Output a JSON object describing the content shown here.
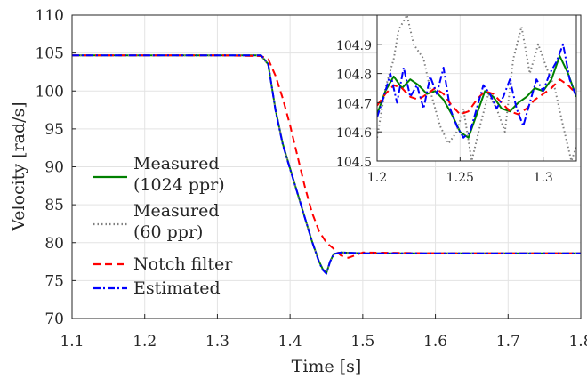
{
  "chart_data": [
    {
      "type": "line",
      "xlabel": "Time [s]",
      "ylabel": "Velocity [rad/s]",
      "xlim": [
        1.1,
        1.8
      ],
      "ylim": [
        70,
        110
      ],
      "xticks": [
        "1.1",
        "1.2",
        "1.3",
        "1.4",
        "1.5",
        "1.6",
        "1.7",
        "1.8"
      ],
      "yticks": [
        "70",
        "75",
        "80",
        "85",
        "90",
        "95",
        "100",
        "105",
        "110"
      ],
      "grid": true,
      "legend_position": "left",
      "series": [
        {
          "name": "Measured (1024 ppr)",
          "color": "#008000",
          "dash": "solid",
          "x": [
            1.1,
            1.2,
            1.3,
            1.36,
            1.37,
            1.38,
            1.39,
            1.4,
            1.41,
            1.42,
            1.43,
            1.44,
            1.445,
            1.45,
            1.455,
            1.46,
            1.47,
            1.5,
            1.6,
            1.7,
            1.8
          ],
          "y": [
            104.7,
            104.7,
            104.7,
            104.7,
            103.5,
            97.5,
            93.0,
            89.8,
            86.6,
            83.4,
            80.2,
            77.5,
            76.5,
            76.0,
            77.5,
            78.5,
            78.7,
            78.6,
            78.6,
            78.6,
            78.6
          ]
        },
        {
          "name": "Measured (60 ppr)",
          "color": "#7f7f7f",
          "dash": "dotted",
          "x": [
            1.1,
            1.2,
            1.3,
            1.36,
            1.37,
            1.38,
            1.39,
            1.4,
            1.41,
            1.42,
            1.43,
            1.44,
            1.445,
            1.45,
            1.455,
            1.46,
            1.47,
            1.5,
            1.6,
            1.7,
            1.8
          ],
          "y": [
            104.7,
            104.7,
            104.7,
            104.7,
            103.4,
            97.6,
            93.0,
            89.8,
            86.5,
            83.4,
            80.2,
            77.5,
            76.4,
            76.0,
            77.6,
            78.5,
            78.7,
            78.6,
            78.6,
            78.6,
            78.6
          ]
        },
        {
          "name": "Notch filter",
          "color": "#ff0000",
          "dash": "dashed",
          "x": [
            1.1,
            1.2,
            1.3,
            1.36,
            1.37,
            1.38,
            1.39,
            1.4,
            1.41,
            1.42,
            1.43,
            1.44,
            1.45,
            1.46,
            1.47,
            1.48,
            1.5,
            1.6,
            1.7,
            1.8
          ],
          "y": [
            104.7,
            104.7,
            104.7,
            104.6,
            104.2,
            102.0,
            99.0,
            95.5,
            91.5,
            87.5,
            84.0,
            81.5,
            80.0,
            79.2,
            78.3,
            78.0,
            78.7,
            78.6,
            78.6,
            78.6
          ]
        },
        {
          "name": "Estimated",
          "color": "#0000ff",
          "dash": "dashdot",
          "x": [
            1.1,
            1.2,
            1.3,
            1.36,
            1.37,
            1.38,
            1.39,
            1.4,
            1.41,
            1.42,
            1.43,
            1.44,
            1.445,
            1.45,
            1.455,
            1.46,
            1.47,
            1.5,
            1.6,
            1.7,
            1.8
          ],
          "y": [
            104.7,
            104.7,
            104.7,
            104.7,
            103.6,
            97.4,
            92.9,
            89.7,
            86.6,
            83.4,
            80.2,
            77.4,
            76.4,
            75.9,
            77.5,
            78.5,
            78.7,
            78.6,
            78.6,
            78.6,
            78.6
          ]
        }
      ]
    },
    {
      "type": "line",
      "inset": true,
      "xlim": [
        1.2,
        1.32
      ],
      "ylim": [
        104.5,
        105.0
      ],
      "xticks": [
        "1.2",
        "1.25",
        "1.3"
      ],
      "yticks": [
        "104.5",
        "104.6",
        "104.7",
        "104.8",
        "104.9"
      ],
      "grid": true,
      "series": [
        {
          "name": "Measured (1024 ppr)",
          "color": "#008000",
          "dash": "solid",
          "x": [
            1.2,
            1.205,
            1.21,
            1.215,
            1.22,
            1.225,
            1.23,
            1.235,
            1.24,
            1.245,
            1.25,
            1.255,
            1.26,
            1.265,
            1.27,
            1.275,
            1.28,
            1.285,
            1.29,
            1.295,
            1.3,
            1.305,
            1.31,
            1.315,
            1.32
          ],
          "y": [
            104.66,
            104.74,
            104.79,
            104.75,
            104.78,
            104.76,
            104.73,
            104.74,
            104.71,
            104.66,
            104.6,
            104.58,
            104.66,
            104.74,
            104.72,
            104.68,
            104.67,
            104.7,
            104.72,
            104.75,
            104.74,
            104.78,
            104.86,
            104.8,
            104.72
          ]
        },
        {
          "name": "Measured (60 ppr)",
          "color": "#7f7f7f",
          "dash": "dotted",
          "x": [
            1.2,
            1.205,
            1.21,
            1.213,
            1.218,
            1.222,
            1.228,
            1.233,
            1.238,
            1.243,
            1.248,
            1.252,
            1.257,
            1.262,
            1.267,
            1.272,
            1.277,
            1.282,
            1.287,
            1.292,
            1.297,
            1.302,
            1.307,
            1.312,
            1.317,
            1.32
          ],
          "y": [
            104.58,
            104.75,
            104.85,
            104.95,
            105.0,
            104.9,
            104.85,
            104.72,
            104.62,
            104.56,
            104.6,
            104.68,
            104.5,
            104.62,
            104.73,
            104.68,
            104.6,
            104.85,
            104.96,
            104.8,
            104.9,
            104.82,
            104.75,
            104.62,
            104.5,
            104.55
          ]
        },
        {
          "name": "Notch filter",
          "color": "#ff0000",
          "dash": "dashed",
          "x": [
            1.2,
            1.205,
            1.21,
            1.215,
            1.22,
            1.225,
            1.23,
            1.235,
            1.24,
            1.245,
            1.25,
            1.255,
            1.26,
            1.265,
            1.27,
            1.275,
            1.28,
            1.285,
            1.29,
            1.295,
            1.3,
            1.305,
            1.31,
            1.315,
            1.32
          ],
          "y": [
            104.69,
            104.73,
            104.76,
            104.75,
            104.72,
            104.71,
            104.73,
            104.75,
            104.73,
            104.69,
            104.66,
            104.67,
            104.71,
            104.74,
            104.73,
            104.7,
            104.67,
            104.66,
            104.68,
            104.71,
            104.73,
            104.75,
            104.78,
            104.76,
            104.73
          ]
        },
        {
          "name": "Estimated",
          "color": "#0000ff",
          "dash": "dashdot",
          "x": [
            1.2,
            1.204,
            1.208,
            1.212,
            1.216,
            1.22,
            1.224,
            1.228,
            1.232,
            1.236,
            1.24,
            1.244,
            1.248,
            1.252,
            1.256,
            1.26,
            1.264,
            1.268,
            1.272,
            1.276,
            1.28,
            1.284,
            1.288,
            1.292,
            1.296,
            1.3,
            1.304,
            1.308,
            1.312,
            1.316,
            1.32
          ],
          "y": [
            104.65,
            104.72,
            104.8,
            104.7,
            104.82,
            104.72,
            104.76,
            104.68,
            104.79,
            104.73,
            104.82,
            104.68,
            104.62,
            104.58,
            104.6,
            104.68,
            104.76,
            104.73,
            104.68,
            104.72,
            104.78,
            104.68,
            104.62,
            104.7,
            104.78,
            104.74,
            104.8,
            104.84,
            104.9,
            104.78,
            104.72
          ]
        }
      ]
    }
  ]
}
